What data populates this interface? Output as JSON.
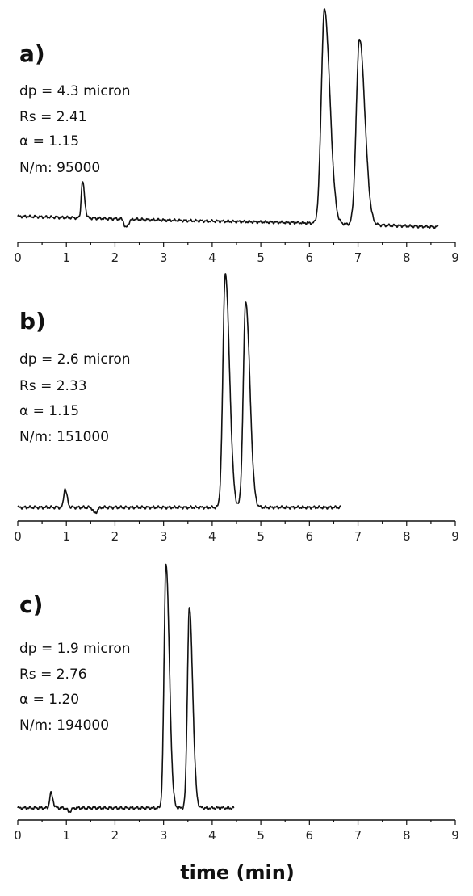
{
  "chart_data": [
    {
      "type": "line",
      "title": "a)",
      "annotations": [
        "dp = 4.3 micron",
        "Rs = 2.41",
        "α = 1.15",
        "N/m: 95000"
      ],
      "xlim": [
        0,
        9
      ],
      "xticks": [
        "0",
        "1",
        "2",
        "3",
        "4",
        "5",
        "6",
        "7",
        "8",
        "9"
      ],
      "end_time": 8.65,
      "baseline": [
        [
          0,
          0.02
        ],
        [
          3.4,
          0.0
        ],
        [
          5.8,
          -0.01
        ],
        [
          8.65,
          -0.03
        ]
      ],
      "peaks": [
        {
          "t": 1.33,
          "h": 0.17,
          "w": 0.025
        },
        {
          "t": 2.22,
          "h": -0.04,
          "w": 0.03
        },
        {
          "t": 6.31,
          "h": 1.0,
          "w": 0.065
        },
        {
          "t": 7.03,
          "h": 0.87,
          "w": 0.065
        }
      ]
    },
    {
      "type": "line",
      "title": "b)",
      "annotations": [
        "dp = 2.6 micron",
        "Rs = 2.33",
        "α = 1.15",
        "N/m: 151000"
      ],
      "xlim": [
        0,
        9
      ],
      "xticks": [
        "0",
        "1",
        "2",
        "3",
        "4",
        "5",
        "6",
        "7",
        "8",
        "9"
      ],
      "end_time": 6.65,
      "baseline": [
        [
          0,
          0.0
        ],
        [
          6.65,
          0.0
        ]
      ],
      "peaks": [
        {
          "t": 0.97,
          "h": 0.08,
          "w": 0.025
        },
        {
          "t": 1.58,
          "h": -0.025,
          "w": 0.03
        },
        {
          "t": 4.27,
          "h": 1.0,
          "w": 0.05
        },
        {
          "t": 4.69,
          "h": 0.88,
          "w": 0.05
        }
      ]
    },
    {
      "type": "line",
      "title": "c)",
      "annotations": [
        "dp = 1.9 micron",
        "Rs = 2.76",
        "α = 1.20",
        "N/m: 194000"
      ],
      "xlim": [
        0,
        9
      ],
      "xticks": [
        "0",
        "1",
        "2",
        "3",
        "4",
        "5",
        "6",
        "7",
        "8",
        "9"
      ],
      "end_time": 4.45,
      "baseline": [
        [
          0,
          0.0
        ],
        [
          4.45,
          0.0
        ]
      ],
      "peaks": [
        {
          "t": 0.68,
          "h": 0.06,
          "w": 0.025
        },
        {
          "t": 1.05,
          "h": -0.015,
          "w": 0.03
        },
        {
          "t": 3.05,
          "h": 1.0,
          "w": 0.04
        },
        {
          "t": 3.53,
          "h": 0.82,
          "w": 0.04
        }
      ]
    }
  ],
  "xlabel": "time (min)"
}
